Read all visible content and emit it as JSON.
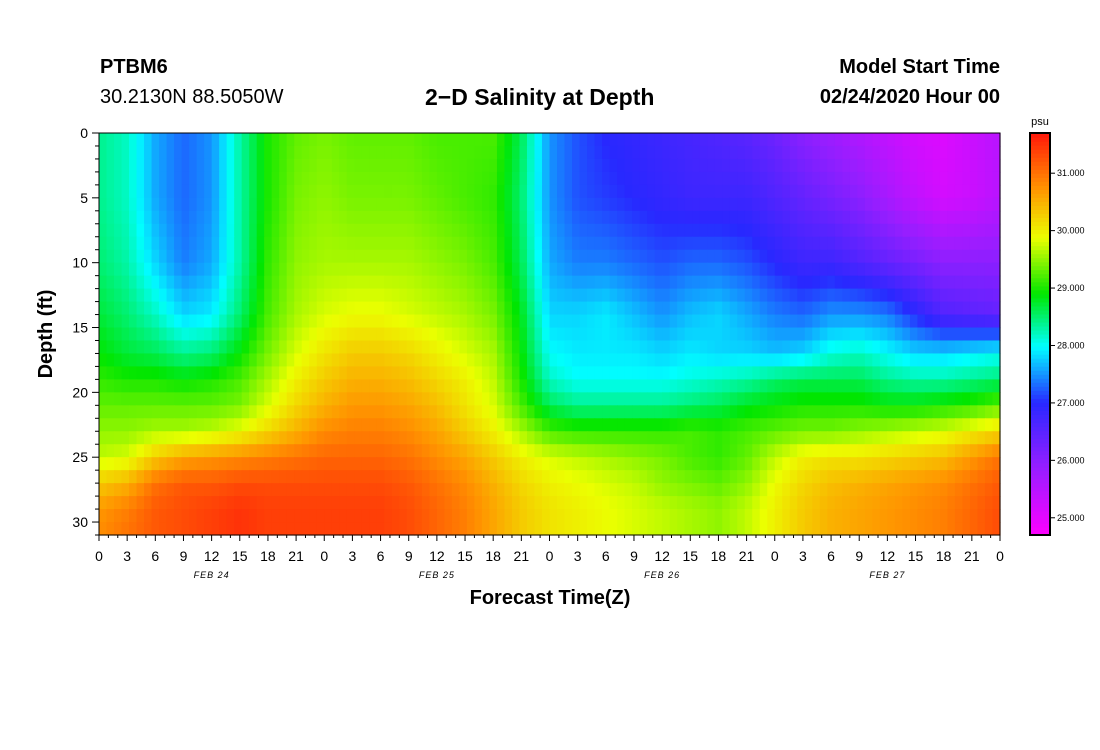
{
  "header": {
    "station": "PTBM6",
    "coords": "30.2130N 88.5050W",
    "title": "2−D Salinity at Depth",
    "model_start_label": "Model Start Time",
    "model_start_value": "02/24/2020 Hour 00"
  },
  "chart_data": {
    "type": "heatmap",
    "title": "2−D Salinity at Depth",
    "xlabel": "Forecast Time(Z)",
    "ylabel": "Depth (ft)",
    "x_range_hours": [
      0,
      96
    ],
    "y_range": [
      0,
      31
    ],
    "y_ticks": [
      0,
      5,
      10,
      15,
      20,
      25,
      30
    ],
    "x_tick_labels": [
      "0",
      "3",
      "6",
      "9",
      "12",
      "15",
      "18",
      "21",
      "0",
      "3",
      "6",
      "9",
      "12",
      "15",
      "18",
      "21",
      "0",
      "3",
      "6",
      "9",
      "12",
      "15",
      "18",
      "21",
      "0",
      "3",
      "6",
      "9",
      "12",
      "15",
      "18",
      "21",
      "0"
    ],
    "date_labels": [
      {
        "label": "FEB 24",
        "hour": 12
      },
      {
        "label": "FEB 25",
        "hour": 36
      },
      {
        "label": "FEB 26",
        "hour": 60
      },
      {
        "label": "FEB 27",
        "hour": 84
      }
    ],
    "colorbar": {
      "unit": "psu",
      "range": [
        24.7,
        31.7
      ],
      "ticks": [
        "25.000",
        "26.000",
        "27.000",
        "28.000",
        "29.000",
        "30.000",
        "31.000"
      ],
      "tick_values": [
        25,
        26,
        27,
        28,
        29,
        30,
        31
      ]
    },
    "z_hours": [
      0,
      3,
      6,
      9,
      12,
      15,
      18,
      21,
      24,
      27,
      30,
      33,
      36,
      39,
      42,
      45,
      48,
      51,
      54,
      57,
      60,
      63,
      66,
      69,
      72,
      75,
      78,
      81,
      84,
      87,
      90,
      93,
      96
    ],
    "z_depths": [
      0,
      5,
      10,
      14,
      17,
      19,
      21,
      23,
      25,
      27,
      29,
      31
    ],
    "z_values": [
      [
        28.4,
        28.2,
        27.6,
        27.3,
        27.5,
        28.3,
        29.0,
        29.3,
        29.4,
        29.3,
        29.3,
        29.3,
        29.2,
        29.2,
        29.2,
        28.6,
        27.5,
        27.2,
        27.0,
        26.9,
        26.8,
        26.7,
        26.6,
        26.5,
        26.3,
        26.0,
        25.8,
        25.6,
        25.4,
        25.2,
        25.1,
        25.3,
        25.5
      ],
      [
        28.4,
        28.2,
        27.6,
        27.3,
        27.5,
        28.3,
        29.0,
        29.4,
        29.5,
        29.4,
        29.4,
        29.4,
        29.3,
        29.2,
        29.1,
        28.5,
        27.5,
        27.2,
        27.1,
        27.0,
        26.9,
        26.8,
        26.8,
        26.8,
        26.6,
        26.4,
        26.2,
        26.0,
        25.7,
        25.4,
        25.2,
        25.3,
        25.5
      ],
      [
        28.5,
        28.3,
        27.8,
        27.4,
        27.6,
        28.3,
        29.1,
        29.5,
        29.6,
        29.6,
        29.6,
        29.6,
        29.5,
        29.4,
        29.2,
        28.6,
        27.6,
        27.4,
        27.4,
        27.3,
        27.2,
        27.3,
        27.3,
        27.2,
        27.0,
        26.8,
        26.8,
        26.6,
        26.4,
        26.2,
        26.0,
        26.0,
        26.0
      ],
      [
        28.7,
        28.5,
        28.2,
        27.8,
        27.9,
        28.5,
        29.2,
        29.6,
        29.8,
        29.9,
        29.9,
        29.8,
        29.7,
        29.6,
        29.4,
        28.8,
        27.8,
        27.8,
        27.9,
        27.7,
        27.5,
        27.7,
        27.8,
        27.6,
        27.4,
        27.3,
        27.5,
        27.5,
        27.4,
        27.0,
        26.6,
        26.5,
        26.4
      ],
      [
        28.9,
        28.7,
        28.6,
        28.4,
        28.5,
        28.9,
        29.4,
        29.8,
        30.1,
        30.3,
        30.3,
        30.2,
        30.0,
        29.8,
        29.6,
        28.9,
        28.0,
        27.9,
        27.9,
        27.9,
        27.8,
        27.9,
        27.8,
        27.8,
        27.7,
        27.8,
        28.1,
        28.2,
        28.0,
        27.8,
        27.8,
        27.9,
        28.0
      ],
      [
        29.1,
        29.0,
        29.0,
        28.9,
        29.0,
        29.2,
        29.6,
        30.0,
        30.3,
        30.5,
        30.5,
        30.4,
        30.2,
        30.0,
        29.7,
        29.0,
        28.2,
        28.0,
        28.0,
        28.0,
        28.0,
        28.1,
        28.2,
        28.3,
        28.5,
        28.6,
        28.6,
        28.6,
        28.4,
        28.3,
        28.3,
        28.4,
        28.5
      ],
      [
        29.3,
        29.3,
        29.3,
        29.3,
        29.3,
        29.4,
        29.8,
        30.2,
        30.5,
        30.7,
        30.7,
        30.6,
        30.4,
        30.1,
        29.8,
        29.2,
        28.6,
        28.4,
        28.4,
        28.4,
        28.4,
        28.5,
        28.6,
        28.8,
        28.9,
        29.0,
        29.0,
        29.0,
        28.9,
        28.9,
        29.0,
        29.1,
        29.3
      ],
      [
        29.5,
        29.5,
        29.6,
        29.6,
        29.7,
        29.9,
        30.2,
        30.5,
        30.8,
        30.9,
        30.9,
        30.8,
        30.6,
        30.3,
        30.0,
        29.6,
        29.2,
        29.1,
        29.1,
        29.1,
        29.1,
        29.2,
        29.1,
        29.2,
        29.3,
        29.4,
        29.4,
        29.5,
        29.6,
        29.7,
        29.8,
        30.0,
        30.2
      ],
      [
        29.7,
        29.8,
        30.3,
        30.6,
        30.7,
        30.8,
        30.9,
        31.0,
        31.1,
        31.1,
        31.1,
        31.0,
        30.8,
        30.6,
        30.3,
        30.0,
        29.8,
        29.7,
        29.6,
        29.5,
        29.4,
        29.2,
        29.1,
        29.3,
        29.7,
        30.0,
        30.1,
        30.1,
        30.2,
        30.3,
        30.4,
        30.7,
        31.0
      ],
      [
        30.3,
        30.5,
        31.0,
        31.2,
        31.2,
        31.3,
        31.3,
        31.3,
        31.3,
        31.3,
        31.3,
        31.2,
        31.0,
        30.8,
        30.5,
        30.2,
        30.0,
        29.9,
        29.8,
        29.7,
        29.5,
        29.4,
        29.3,
        29.5,
        29.9,
        30.2,
        30.4,
        30.5,
        30.6,
        30.7,
        30.8,
        31.0,
        31.2
      ],
      [
        30.7,
        30.9,
        31.2,
        31.3,
        31.4,
        31.5,
        31.4,
        31.4,
        31.4,
        31.4,
        31.4,
        31.3,
        31.1,
        30.9,
        30.6,
        30.3,
        30.1,
        30.0,
        29.9,
        29.8,
        29.7,
        29.6,
        29.5,
        29.7,
        30.0,
        30.3,
        30.5,
        30.6,
        30.7,
        30.8,
        30.9,
        31.1,
        31.3
      ],
      [
        30.8,
        31.0,
        31.2,
        31.3,
        31.4,
        31.5,
        31.4,
        31.4,
        31.4,
        31.4,
        31.4,
        31.3,
        31.1,
        30.9,
        30.6,
        30.3,
        30.1,
        30.0,
        29.9,
        29.8,
        29.7,
        29.6,
        29.5,
        29.7,
        30.0,
        30.3,
        30.5,
        30.6,
        30.7,
        30.8,
        30.9,
        31.1,
        31.3
      ]
    ]
  }
}
